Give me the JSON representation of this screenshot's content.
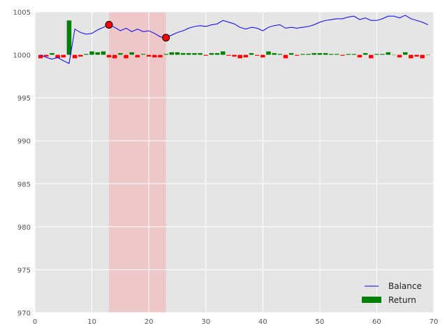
{
  "chart_data": {
    "type": "line",
    "title": "",
    "xlabel": "",
    "ylabel": "",
    "xlim": [
      0,
      70
    ],
    "ylim": [
      970,
      1005
    ],
    "xticks": [
      0,
      10,
      20,
      30,
      40,
      50,
      60,
      70
    ],
    "yticks": [
      970,
      975,
      980,
      985,
      990,
      995,
      1000,
      1005
    ],
    "grid": true,
    "legend_position": "bottom-right",
    "colors": {
      "plot_background": "#e5e5e5",
      "grid": "#ffffff",
      "balance": "#0000ff",
      "positive_return": "#008000",
      "negative_return": "#ff0000",
      "marker": "#ff0000",
      "shaded_region": "#f4b4b4"
    },
    "shaded_regions": [
      {
        "x_start": 13,
        "x_end": 23
      }
    ],
    "markers": [
      {
        "x": 13,
        "y": 1003.5
      },
      {
        "x": 23,
        "y": 1002.0
      }
    ],
    "series": [
      {
        "name": "Balance",
        "type": "line",
        "x": [
          1,
          2,
          3,
          4,
          5,
          6,
          7,
          8,
          9,
          10,
          11,
          12,
          13,
          14,
          15,
          16,
          17,
          18,
          19,
          20,
          21,
          22,
          23,
          24,
          25,
          26,
          27,
          28,
          29,
          30,
          31,
          32,
          33,
          34,
          35,
          36,
          37,
          38,
          39,
          40,
          41,
          42,
          43,
          44,
          45,
          46,
          47,
          48,
          49,
          50,
          51,
          52,
          53,
          54,
          55,
          56,
          57,
          58,
          59,
          60,
          61,
          62,
          63,
          64,
          65,
          66,
          67,
          68,
          69
        ],
        "values": [
          1000.0,
          999.7,
          999.5,
          999.7,
          999.3,
          999.0,
          1003.0,
          1002.6,
          1002.4,
          1002.5,
          1002.9,
          1003.2,
          1003.5,
          1003.2,
          1002.8,
          1003.1,
          1002.7,
          1003.0,
          1002.7,
          1002.8,
          1002.5,
          1002.1,
          1002.0,
          1002.3,
          1002.6,
          1002.8,
          1003.1,
          1003.3,
          1003.4,
          1003.3,
          1003.5,
          1003.6,
          1004.0,
          1003.8,
          1003.6,
          1003.2,
          1003.0,
          1003.2,
          1003.1,
          1002.8,
          1003.2,
          1003.4,
          1003.5,
          1003.1,
          1003.2,
          1003.1,
          1003.2,
          1003.3,
          1003.5,
          1003.8,
          1004.0,
          1004.1,
          1004.2,
          1004.2,
          1004.4,
          1004.5,
          1004.1,
          1004.3,
          1004.0,
          1004.0,
          1004.2,
          1004.5,
          1004.5,
          1004.3,
          1004.6,
          1004.2,
          1004.0,
          1003.8,
          1003.5
        ]
      },
      {
        "name": "Return",
        "type": "bar",
        "base": 1000,
        "x": [
          1,
          2,
          3,
          4,
          5,
          6,
          7,
          8,
          9,
          10,
          11,
          12,
          13,
          14,
          15,
          16,
          17,
          18,
          19,
          20,
          21,
          22,
          23,
          24,
          25,
          26,
          27,
          28,
          29,
          30,
          31,
          32,
          33,
          34,
          35,
          36,
          37,
          38,
          39,
          40,
          41,
          42,
          43,
          44,
          45,
          46,
          47,
          48,
          49,
          50,
          51,
          52,
          53,
          54,
          55,
          56,
          57,
          58,
          59,
          60,
          61,
          62,
          63,
          64,
          65,
          66,
          67,
          68,
          69
        ],
        "values": [
          -0.4,
          -0.2,
          0.2,
          -0.4,
          -0.3,
          4.0,
          -0.4,
          -0.2,
          0.1,
          0.4,
          0.3,
          0.4,
          -0.3,
          -0.4,
          0.2,
          -0.4,
          0.3,
          -0.3,
          0.1,
          -0.2,
          -0.3,
          -0.3,
          0.1,
          0.3,
          0.3,
          0.2,
          0.2,
          0.2,
          0.2,
          -0.1,
          0.2,
          0.2,
          0.4,
          -0.1,
          -0.2,
          -0.4,
          -0.3,
          0.2,
          -0.1,
          -0.3,
          0.4,
          0.2,
          0.1,
          -0.4,
          0.2,
          -0.1,
          0.1,
          0.1,
          0.2,
          0.2,
          0.2,
          0.1,
          0.1,
          -0.1,
          0.1,
          0.1,
          -0.3,
          0.2,
          -0.4,
          0.1,
          0.1,
          0.3,
          0.0,
          -0.3,
          0.3,
          -0.4,
          -0.2,
          -0.4,
          0.0
        ]
      }
    ]
  }
}
